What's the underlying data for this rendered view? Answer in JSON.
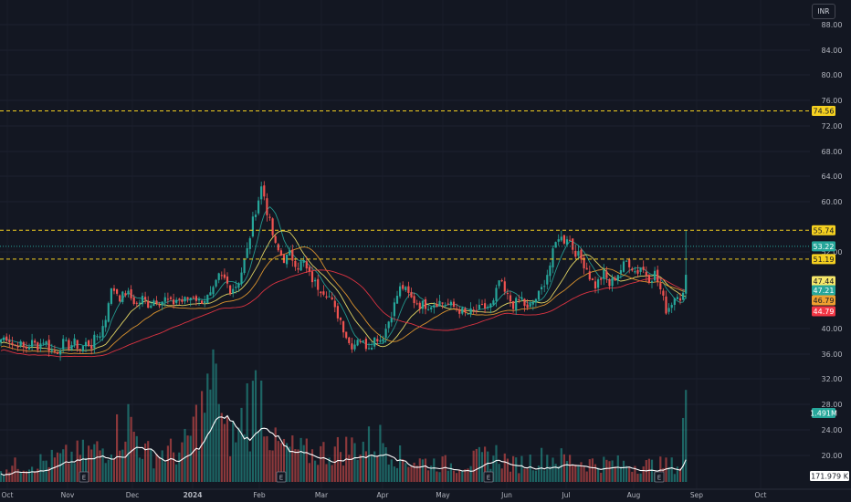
{
  "currency": "INR",
  "chart_data": {
    "type": "candlestick",
    "yaxis": {
      "ticks": [
        "88.00",
        "84.00",
        "80.00",
        "76.00",
        "72.00",
        "68.00",
        "64.00",
        "60.00",
        "52.00",
        "40.00",
        "36.00",
        "32.00",
        "28.00",
        "24.00",
        "20.00"
      ],
      "range": [
        16,
        90
      ]
    },
    "xaxis": {
      "months": [
        "Oct",
        "Nov",
        "Dec",
        "2024",
        "Feb",
        "Mar",
        "Apr",
        "May",
        "Jun",
        "Jul",
        "Aug",
        "Sep",
        "Oct"
      ]
    },
    "horizontal_lines": [
      {
        "value": 74.56,
        "label": "74.56",
        "color": "#f5d020",
        "style": "dashed"
      },
      {
        "value": 55.74,
        "label": "55.74",
        "color": "#f5d020",
        "style": "dashed"
      },
      {
        "value": 51.19,
        "label": "51.19",
        "color": "#f5d020",
        "style": "dashed"
      },
      {
        "value": 53.22,
        "label": "53.22",
        "color": "#26a69a",
        "style": "dotted"
      }
    ],
    "price_tags": [
      {
        "value": 47.44,
        "label": "47.44",
        "color": "#f7e86a"
      },
      {
        "value": 47.21,
        "label": "47.21",
        "color": "#26a69a"
      },
      {
        "value": 46.79,
        "label": "46.79",
        "color": "#f0a030"
      },
      {
        "value": 44.79,
        "label": "44.79",
        "color": "#f23645"
      }
    ],
    "volume_tags": [
      {
        "label": "1.491M",
        "color": "#26a69a"
      },
      {
        "label": "171.979 K",
        "color": "#ffffff"
      }
    ],
    "earnings_markers": [
      "E",
      "E",
      "E",
      "E"
    ],
    "moving_averages": [
      {
        "color": "#26a69a",
        "period_hint": "short"
      },
      {
        "color": "#f7e86a",
        "period_hint": "medium"
      },
      {
        "color": "#f0a030",
        "period_hint": "long"
      },
      {
        "color": "#f23645",
        "period_hint": "longest"
      }
    ],
    "price_anchors": [
      [
        0,
        38.5
      ],
      [
        8,
        39
      ],
      [
        15,
        37.5
      ],
      [
        20,
        38
      ],
      [
        27,
        37
      ],
      [
        35,
        38
      ],
      [
        42,
        37.5
      ],
      [
        48,
        38.5
      ],
      [
        55,
        37
      ],
      [
        62,
        36.5
      ],
      [
        68,
        38
      ],
      [
        75,
        37.5
      ],
      [
        82,
        38
      ],
      [
        88,
        37
      ],
      [
        95,
        38
      ],
      [
        100,
        37.5
      ],
      [
        105,
        39
      ],
      [
        110,
        39.5
      ],
      [
        116,
        42
      ],
      [
        120,
        46
      ],
      [
        126,
        46.5
      ],
      [
        132,
        45
      ],
      [
        138,
        46
      ],
      [
        144,
        45
      ],
      [
        150,
        44
      ],
      [
        156,
        45
      ],
      [
        163,
        44
      ],
      [
        170,
        45
      ],
      [
        176,
        44.5
      ],
      [
        182,
        45
      ],
      [
        188,
        44
      ],
      [
        194,
        45
      ],
      [
        200,
        44.5
      ],
      [
        206,
        45
      ],
      [
        212,
        45.5
      ],
      [
        218,
        44.5
      ],
      [
        225,
        45
      ],
      [
        232,
        45.5
      ],
      [
        236,
        47
      ],
      [
        240,
        48.5
      ],
      [
        246,
        48
      ],
      [
        252,
        46.5
      ],
      [
        258,
        47
      ],
      [
        262,
        48
      ],
      [
        266,
        50
      ],
      [
        270,
        52
      ],
      [
        274,
        55
      ],
      [
        278,
        58
      ],
      [
        282,
        60
      ],
      [
        287,
        63
      ],
      [
        292,
        59
      ],
      [
        297,
        56
      ],
      [
        302,
        53
      ],
      [
        307,
        52
      ],
      [
        312,
        51
      ],
      [
        317,
        52
      ],
      [
        322,
        51
      ],
      [
        327,
        50
      ],
      [
        332,
        51
      ],
      [
        337,
        49
      ],
      [
        342,
        48
      ],
      [
        347,
        47
      ],
      [
        352,
        46.5
      ],
      [
        357,
        46
      ],
      [
        362,
        45
      ],
      [
        367,
        43
      ],
      [
        372,
        42
      ],
      [
        377,
        40
      ],
      [
        382,
        38
      ],
      [
        387,
        37.5
      ],
      [
        392,
        39
      ],
      [
        397,
        38
      ],
      [
        402,
        37.5
      ],
      [
        407,
        38
      ],
      [
        412,
        39
      ],
      [
        417,
        38.5
      ],
      [
        422,
        40
      ],
      [
        427,
        42
      ],
      [
        432,
        44
      ],
      [
        436,
        46
      ],
      [
        440,
        47
      ],
      [
        445,
        46
      ],
      [
        450,
        45
      ],
      [
        455,
        44.5
      ],
      [
        460,
        44
      ],
      [
        470,
        44
      ],
      [
        480,
        44.5
      ],
      [
        490,
        44
      ],
      [
        500,
        43.5
      ],
      [
        510,
        42.5
      ],
      [
        520,
        43
      ],
      [
        530,
        43.5
      ],
      [
        540,
        44
      ],
      [
        547,
        48
      ],
      [
        552,
        46
      ],
      [
        557,
        45
      ],
      [
        562,
        44
      ],
      [
        567,
        44.5
      ],
      [
        572,
        45
      ],
      [
        577,
        43
      ],
      [
        582,
        44
      ],
      [
        587,
        45
      ],
      [
        592,
        46
      ],
      [
        597,
        48
      ],
      [
        602,
        50
      ],
      [
        607,
        53
      ],
      [
        612,
        55
      ],
      [
        617,
        54
      ],
      [
        622,
        55
      ],
      [
        627,
        53
      ],
      [
        632,
        52
      ],
      [
        637,
        51
      ],
      [
        642,
        50
      ],
      [
        647,
        48
      ],
      [
        652,
        47
      ],
      [
        657,
        48
      ],
      [
        662,
        49
      ],
      [
        667,
        47
      ],
      [
        672,
        48
      ],
      [
        677,
        49
      ],
      [
        682,
        50
      ],
      [
        687,
        51
      ],
      [
        692,
        50
      ],
      [
        697,
        49
      ],
      [
        702,
        50
      ],
      [
        707,
        49
      ],
      [
        712,
        48
      ],
      [
        717,
        49
      ],
      [
        722,
        47
      ],
      [
        726,
        45
      ],
      [
        730,
        43
      ],
      [
        734,
        44
      ],
      [
        738,
        45
      ],
      [
        742,
        46
      ],
      [
        746,
        45
      ],
      [
        750,
        46
      ],
      [
        754,
        53.22
      ]
    ],
    "volume_anchors": [
      [
        0,
        0.5
      ],
      [
        60,
        0.8
      ],
      [
        115,
        1.2
      ],
      [
        140,
        2.2
      ],
      [
        160,
        1.0
      ],
      [
        200,
        1.1
      ],
      [
        237,
        3.6
      ],
      [
        245,
        1.6
      ],
      [
        262,
        1.7
      ],
      [
        270,
        3.0
      ],
      [
        275,
        2.0
      ],
      [
        280,
        4.0
      ],
      [
        300,
        1.3
      ],
      [
        340,
        1.0
      ],
      [
        380,
        1.2
      ],
      [
        420,
        1.5
      ],
      [
        440,
        0.8
      ],
      [
        500,
        0.6
      ],
      [
        545,
        1.0
      ],
      [
        560,
        0.6
      ],
      [
        600,
        0.9
      ],
      [
        640,
        0.7
      ],
      [
        700,
        0.6
      ],
      [
        745,
        0.6
      ],
      [
        750,
        2.8
      ]
    ]
  }
}
